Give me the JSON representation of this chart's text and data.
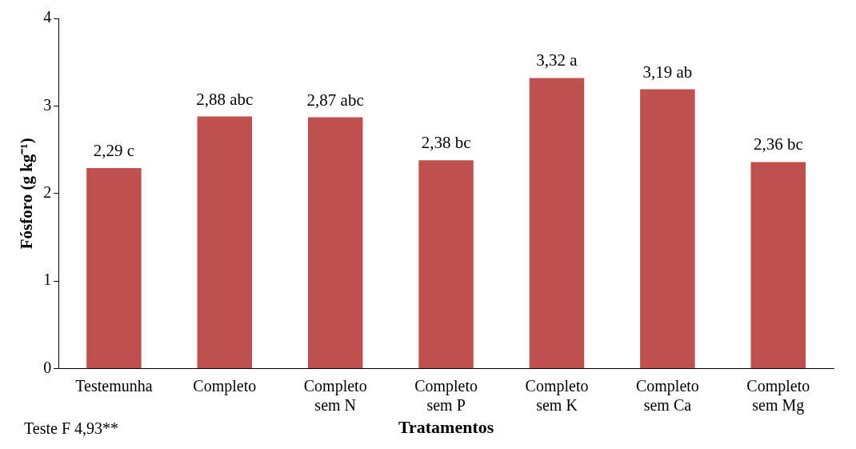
{
  "chart_data": {
    "type": "bar",
    "xlabel": "Tratamentos",
    "ylabel": "Fósforo (g kg⁻¹)",
    "categories": [
      "Testemunha",
      "Completo",
      "Completo sem N",
      "Completo sem P",
      "Completo sem K",
      "Completo sem Ca",
      "Completo sem Mg"
    ],
    "values": [
      2.29,
      2.88,
      2.87,
      2.38,
      3.32,
      3.19,
      2.36
    ],
    "value_labels": [
      "2,29 c",
      "2,88 abc",
      "2,87 abc",
      "2,38 bc",
      "3,32 a",
      "3,19 ab",
      "2,36 bc"
    ],
    "color": "#c0504d",
    "ylim": [
      0,
      4
    ],
    "yticks": [
      0,
      1,
      2,
      3,
      4
    ],
    "grid": false,
    "legend": false,
    "annotations": [
      "Teste F 4,93**"
    ]
  }
}
